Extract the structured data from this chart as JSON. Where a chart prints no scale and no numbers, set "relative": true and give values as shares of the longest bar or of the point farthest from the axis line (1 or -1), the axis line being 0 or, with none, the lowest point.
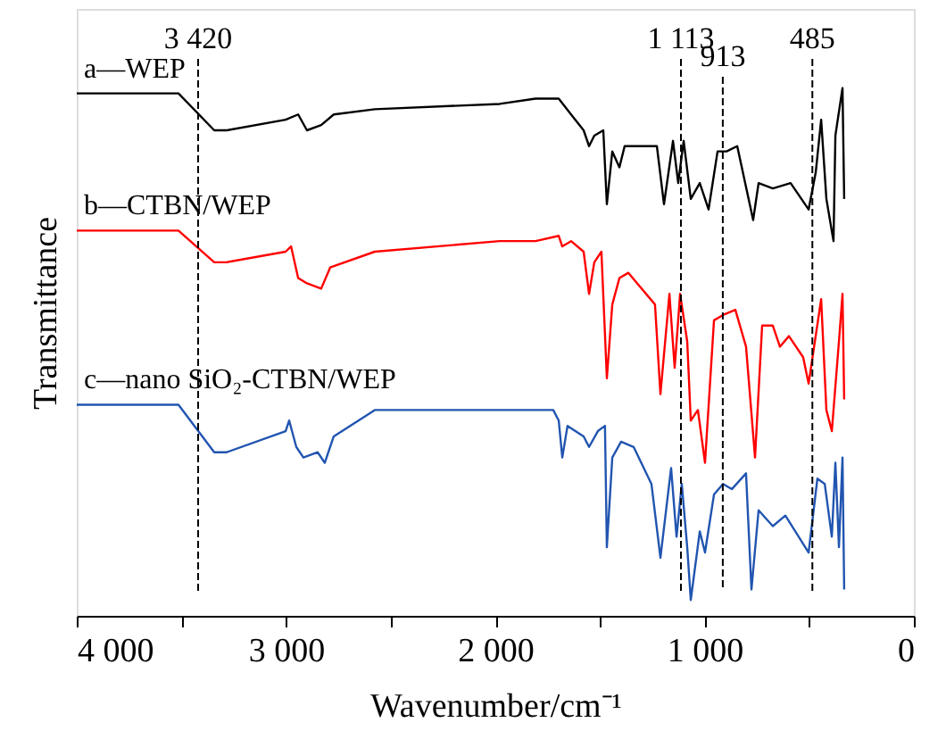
{
  "chart_data": {
    "type": "line",
    "relative": true,
    "xlabel": "Wavenumber/cm⁻¹",
    "ylabel": "Transmittance",
    "xlim": [
      4000,
      0
    ],
    "xticks": [
      {
        "value": 4000,
        "label": "4 000"
      },
      {
        "value": 3500,
        "label": null
      },
      {
        "value": 3000,
        "label": "3 000"
      },
      {
        "value": 2500,
        "label": null
      },
      {
        "value": 2000,
        "label": "2 000"
      },
      {
        "value": 1500,
        "label": null
      },
      {
        "value": 1000,
        "label": "1 000"
      },
      {
        "value": 500,
        "label": null
      },
      0
    ],
    "tick_labels": "x",
    "grid": false,
    "marker": "none",
    "line_style": "solid",
    "annotations": [
      "a—WEP",
      "b—CTBN/WEP",
      "c—nano SiO₂-CTBN/WEP"
    ],
    "ref_lines": [
      {
        "axis": "x",
        "value": 3420,
        "label": "3 420",
        "line_style": "dashed",
        "color": "#000000"
      },
      {
        "axis": "x",
        "value": 1113,
        "label": "1 113",
        "line_style": "dashed",
        "color": "#000000"
      },
      {
        "axis": "x",
        "value": 913,
        "label": "913",
        "line_style": "dashed",
        "color": "#000000"
      },
      {
        "axis": "x",
        "value": 485,
        "label": "485",
        "line_style": "dashed",
        "color": "#000000"
      }
    ],
    "series": [
      {
        "color": "#000000",
        "x": [
          4000,
          3855,
          3514,
          3343,
          3284,
          3002,
          2942,
          2900,
          2832,
          2772,
          2576,
          1979,
          1808,
          1697,
          1638,
          1578,
          1552,
          1527,
          1484,
          1467,
          1441,
          1407,
          1382,
          1322,
          1228,
          1194,
          1151,
          1126,
          1100,
          1066,
          1023,
          981,
          938,
          895,
          844,
          768,
          742,
          674,
          589,
          503,
          469,
          443,
          418,
          384,
          375,
          341,
          333
        ],
        "values": [
          0.99,
          0.99,
          0.99,
          0.92,
          0.92,
          0.94,
          0.95,
          0.92,
          0.93,
          0.95,
          0.96,
          0.97,
          0.98,
          0.98,
          0.95,
          0.92,
          0.89,
          0.91,
          0.92,
          0.78,
          0.88,
          0.85,
          0.89,
          0.89,
          0.89,
          0.78,
          0.9,
          0.82,
          0.9,
          0.79,
          0.82,
          0.77,
          0.88,
          0.88,
          0.89,
          0.75,
          0.82,
          0.81,
          0.82,
          0.77,
          0.84,
          0.94,
          0.79,
          0.71,
          0.91,
          1.0,
          0.79
        ]
      },
      {
        "color": "#ff0000",
        "x": [
          4000,
          3855,
          3514,
          3343,
          3284,
          3002,
          2976,
          2942,
          2900,
          2832,
          2789,
          2576,
          1979,
          1808,
          1697,
          1680,
          1638,
          1578,
          1552,
          1527,
          1493,
          1467,
          1441,
          1407,
          1364,
          1322,
          1237,
          1211,
          1168,
          1143,
          1117,
          1083,
          1066,
          1032,
          998,
          955,
          912,
          853,
          802,
          759,
          725,
          674,
          640,
          597,
          529,
          503,
          443,
          418,
          392,
          358,
          341,
          333
        ],
        "values": [
          0.73,
          0.73,
          0.73,
          0.67,
          0.67,
          0.69,
          0.7,
          0.64,
          0.63,
          0.62,
          0.66,
          0.69,
          0.71,
          0.71,
          0.72,
          0.7,
          0.71,
          0.69,
          0.61,
          0.67,
          0.69,
          0.45,
          0.59,
          0.64,
          0.65,
          0.63,
          0.59,
          0.42,
          0.61,
          0.47,
          0.61,
          0.52,
          0.37,
          0.39,
          0.29,
          0.56,
          0.57,
          0.58,
          0.51,
          0.3,
          0.55,
          0.55,
          0.51,
          0.53,
          0.49,
          0.44,
          0.6,
          0.39,
          0.35,
          0.52,
          0.61,
          0.41
        ]
      },
      {
        "color": "#2155b0",
        "x": [
          4000,
          3855,
          3514,
          3343,
          3284,
          3002,
          2985,
          2951,
          2917,
          2849,
          2815,
          2772,
          2576,
          1979,
          1808,
          1723,
          1697,
          1680,
          1655,
          1578,
          1552,
          1510,
          1476,
          1467,
          1441,
          1399,
          1339,
          1254,
          1211,
          1160,
          1134,
          1109,
          1083,
          1066,
          1023,
          998,
          955,
          912,
          870,
          802,
          776,
          742,
          674,
          614,
          503,
          461,
          426,
          392,
          375,
          358,
          341,
          333
        ],
        "values": [
          0.4,
          0.4,
          0.4,
          0.31,
          0.31,
          0.35,
          0.37,
          0.32,
          0.3,
          0.31,
          0.29,
          0.34,
          0.39,
          0.39,
          0.39,
          0.39,
          0.37,
          0.3,
          0.36,
          0.34,
          0.32,
          0.35,
          0.36,
          0.13,
          0.3,
          0.33,
          0.32,
          0.25,
          0.11,
          0.28,
          0.15,
          0.25,
          0.13,
          0.03,
          0.16,
          0.12,
          0.23,
          0.25,
          0.24,
          0.27,
          0.05,
          0.2,
          0.17,
          0.19,
          0.12,
          0.26,
          0.25,
          0.15,
          0.29,
          0.13,
          0.3,
          0.05
        ]
      }
    ]
  }
}
